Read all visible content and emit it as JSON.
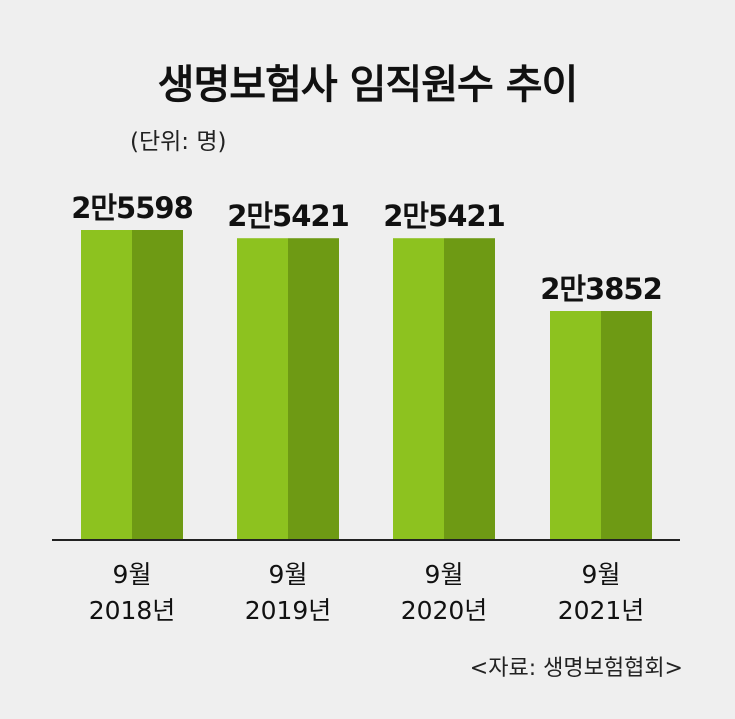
{
  "title": "생명보험사 임직원수 추이",
  "unit_note": "(단위: 명)",
  "source": "<자료: 생명보험협회>",
  "colors": {
    "bar_light": "#8dc21f",
    "bar_dark": "#6e9a14",
    "axis": "#222222",
    "background": "#efefef"
  },
  "chart_data": {
    "type": "bar",
    "title": "생명보험사 임직원수 추이",
    "xlabel": "",
    "ylabel": "",
    "ylim": [
      0,
      26000
    ],
    "categories": [
      {
        "month": "9월",
        "year": "2018년"
      },
      {
        "month": "9월",
        "year": "2019년"
      },
      {
        "month": "9월",
        "year": "2020년"
      },
      {
        "month": "9월",
        "year": "2021년"
      }
    ],
    "values": [
      25598,
      25421,
      25421,
      23852
    ],
    "data_labels": [
      "2만5598",
      "2만5421",
      "2만5421",
      "2만3852"
    ],
    "grid": false,
    "legend": "none"
  }
}
